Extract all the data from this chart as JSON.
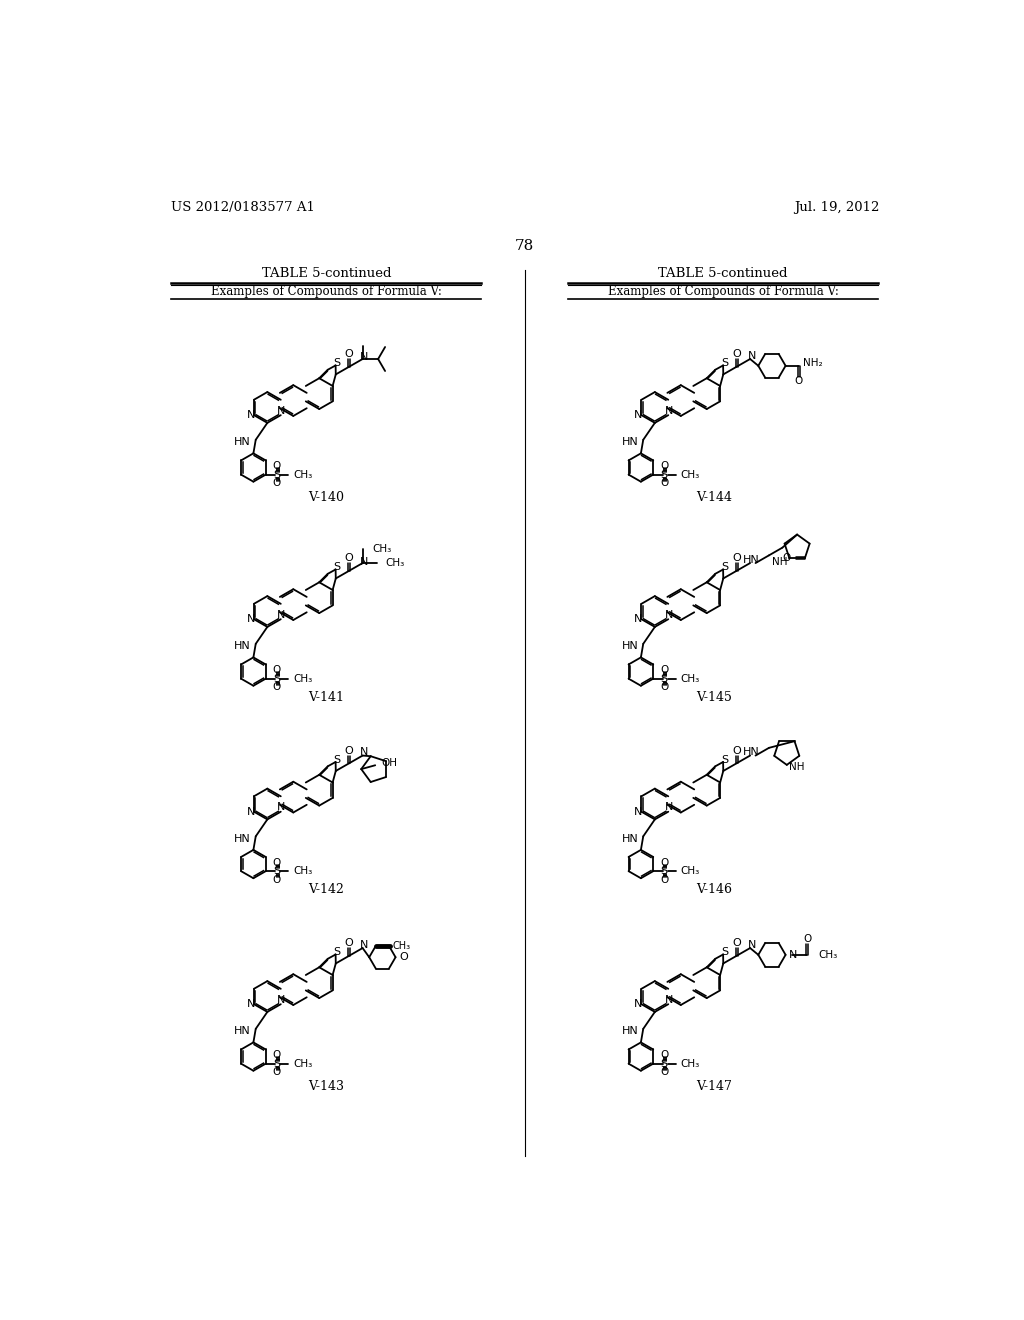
{
  "page_header_left": "US 2012/0183577 A1",
  "page_header_right": "Jul. 19, 2012",
  "page_number": "78",
  "table_title": "TABLE 5-continued",
  "table_subtitle": "Examples of Compounds of Formula V:",
  "background_color": "#ffffff",
  "text_color": "#000000",
  "compound_labels": [
    "V-140",
    "V-141",
    "V-142",
    "V-143",
    "V-144",
    "V-145",
    "V-146",
    "V-147"
  ]
}
